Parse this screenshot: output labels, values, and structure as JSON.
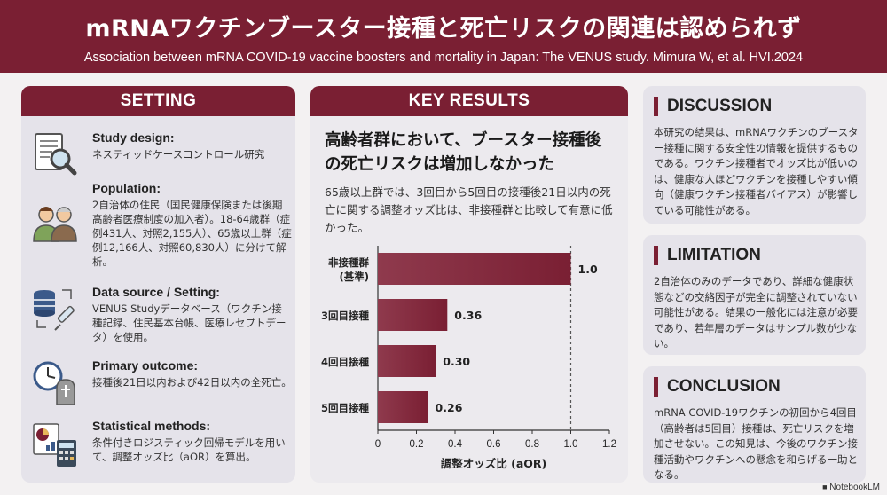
{
  "header": {
    "title": "mRNAワクチンブースター接種と死亡リスクの関連は認められず",
    "subtitle": "Association between mRNA COVID-19 vaccine boosters and mortality in Japan: The VENUS study. Mimura W, et al. HVI.2024"
  },
  "setting": {
    "heading": "SETTING",
    "items": [
      {
        "title": "Study design:",
        "body": "ネスティッドケースコントロール研究",
        "icon": "document-magnifier-icon"
      },
      {
        "title": "Population:",
        "body": "2自治体の住民（国民健康保険または後期高齢者医療制度の加入者）。18-64歳群（症例431人、対照2,155人）、65歳以上群（症例12,166人、対照60,830人）に分けて解析。",
        "icon": "people-icon"
      },
      {
        "title": "Data source / Setting:",
        "body": "VENUS Studyデータベース（ワクチン接種記録、住民基本台帳、医療レセプトデータ）を使用。",
        "icon": "database-syringe-icon"
      },
      {
        "title": "Primary outcome:",
        "body": "接種後21日以内および42日以内の全死亡。",
        "icon": "clock-tombstone-icon"
      },
      {
        "title": "Statistical methods:",
        "body": "条件付きロジスティック回帰モデルを用いて、調整オッズ比（aOR）を算出。",
        "icon": "chart-calculator-icon"
      }
    ]
  },
  "results": {
    "heading": "KEY RESULTS",
    "headline": "高齢者群において、ブースター接種後の死亡リスクは増加しなかった",
    "body": "65歳以上群では、3回目から5回目の接種後21日以内の死亡に関する調整オッズ比は、非接種群と比較して有意に低かった。"
  },
  "chart_data": {
    "type": "bar",
    "orientation": "horizontal",
    "categories": [
      [
        "非接種群",
        "(基準)"
      ],
      [
        "3回目接種"
      ],
      [
        "4回目接種"
      ],
      [
        "5回目接種"
      ]
    ],
    "values": [
      1.0,
      0.36,
      0.3,
      0.26
    ],
    "value_labels": [
      "1.0",
      "0.36",
      "0.30",
      "0.26"
    ],
    "xlabel": "調整オッズ比 (aOR)",
    "xlim": [
      0,
      1.2
    ],
    "xticks": [
      "0",
      "0.2",
      "0.4",
      "0.6",
      "0.8",
      "1.0",
      "1.2"
    ],
    "xtick_values": [
      0,
      0.2,
      0.4,
      0.6,
      0.8,
      1.0,
      1.2
    ],
    "reference_line": 1.0,
    "grid": false,
    "bar_color": "#7a1f33"
  },
  "discussion": {
    "heading": "DISCUSSION",
    "body": "本研究の結果は、mRNAワクチンのブースター接種に関する安全性の情報を提供するものである。ワクチン接種者でオッズ比が低いのは、健康な人ほどワクチンを接種しやすい傾向（健康ワクチン接種者バイアス）が影響している可能性がある。"
  },
  "limitation": {
    "heading": "LIMITATION",
    "body": "2自治体のみのデータであり、詳細な健康状態などの交絡因子が完全に調整されていない可能性がある。結果の一般化には注意が必要であり、若年層のデータはサンプル数が少ない。"
  },
  "conclusion": {
    "heading": "CONCLUSION",
    "body": "mRNA COVID-19ワクチンの初回から4回目（高齢者は5回目）接種は、死亡リスクを増加させない。この知見は、今後のワクチン接種活動やワクチンへの懸念を和らげる一助となる。"
  },
  "brand": "NotebookLM",
  "colors": {
    "accent": "#7a1f33",
    "panel": "#e5e3ea"
  }
}
